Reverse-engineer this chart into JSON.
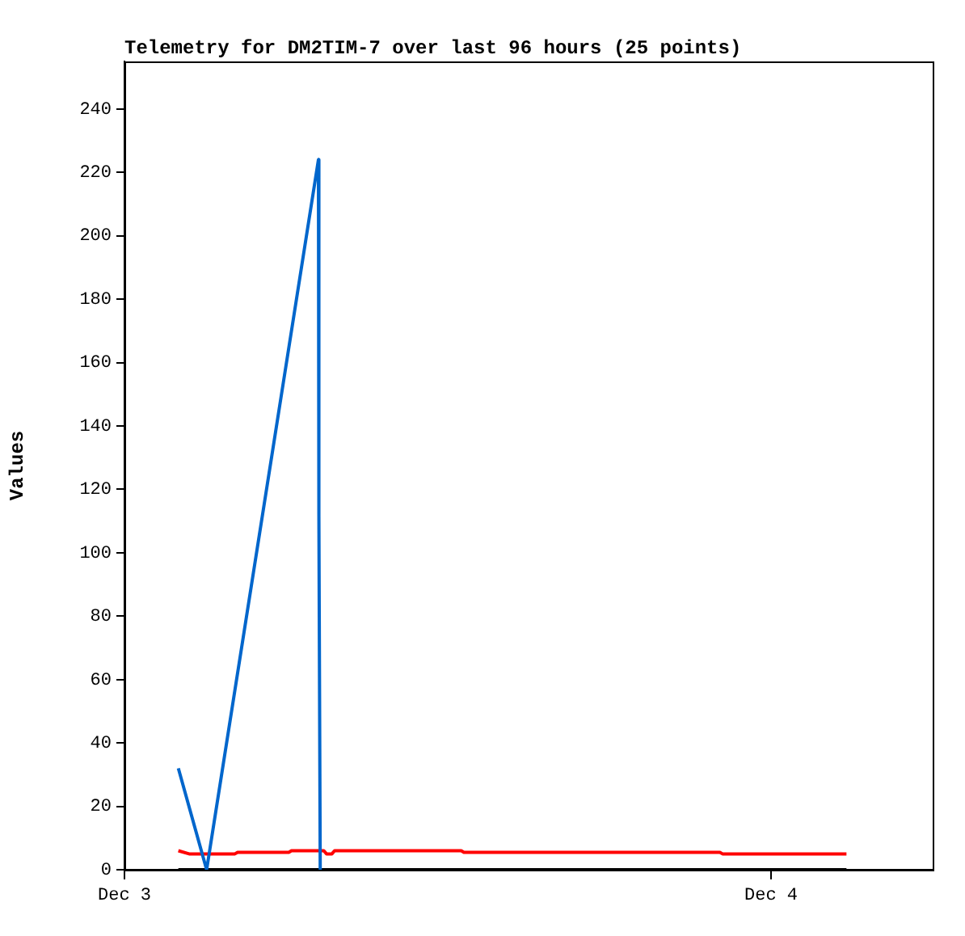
{
  "chart_data": {
    "type": "line",
    "title": "Telemetry for DM2TIM-7 over last 96 hours (25 points)",
    "ylabel": "Values",
    "xlim": [
      "--12-03",
      "--12-04T06:00"
    ],
    "xticks": [
      {
        "value": "--12-03",
        "label": "Dec 3"
      },
      {
        "value": "--12-04",
        "label": "Dec 4"
      }
    ],
    "ylim": [
      0,
      255
    ],
    "yticks": [
      0,
      20,
      40,
      60,
      80,
      100,
      120,
      140,
      160,
      180,
      200,
      220,
      240
    ],
    "grid": false,
    "legend": false,
    "marker": "none",
    "line_style": "solid",
    "series": [
      {
        "color": "#000000",
        "x": [
          "--12-03T02:00",
          "--12-04T02:48"
        ],
        "values": [
          0,
          0
        ]
      },
      {
        "color": "#ff0000",
        "x": [
          "--12-03T02:00",
          "--12-03T02:24",
          "--12-03T04:06",
          "--12-03T04:12",
          "--12-03T06:06",
          "--12-03T06:12",
          "--12-03T07:24",
          "--12-03T07:30",
          "--12-03T07:42",
          "--12-03T07:48",
          "--12-03T12:30",
          "--12-03T12:36",
          "--12-03T22:06",
          "--12-03T22:12",
          "--12-04T02:48"
        ],
        "values": [
          6,
          5,
          5,
          5.5,
          5.5,
          6,
          6,
          5,
          5,
          6,
          6,
          5.5,
          5.5,
          5,
          5
        ]
      },
      {
        "color": "#0066cc",
        "x": [
          "--12-03T02:00",
          "--12-03T03:03",
          "--12-03T07:12",
          "--12-03T07:13",
          "--12-03T07:16"
        ],
        "values": [
          32,
          0,
          224,
          112,
          0
        ]
      }
    ]
  }
}
